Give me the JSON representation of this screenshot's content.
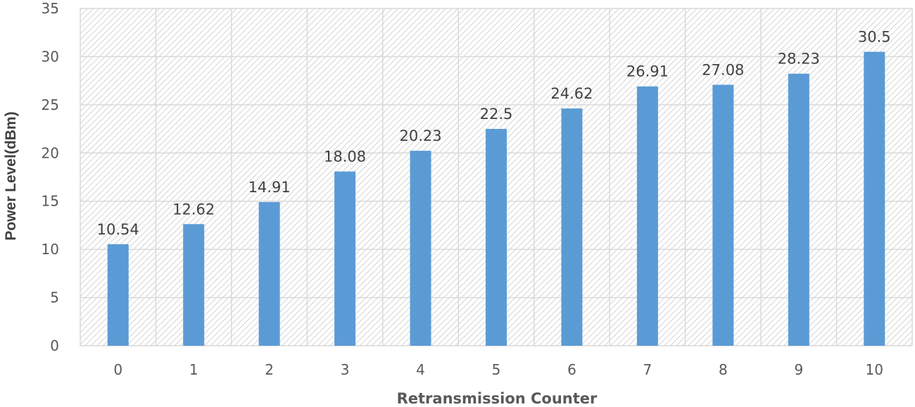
{
  "chart_data": {
    "type": "bar",
    "title": "",
    "xlabel": "Retransmission Counter",
    "ylabel": "Power Level(dBm)",
    "categories": [
      "0",
      "1",
      "2",
      "3",
      "4",
      "5",
      "6",
      "7",
      "8",
      "9",
      "10"
    ],
    "values": [
      10.54,
      12.62,
      14.91,
      18.08,
      20.23,
      22.5,
      24.62,
      26.91,
      27.08,
      28.23,
      30.5
    ],
    "data_labels": [
      "10.54",
      "12.62",
      "14.91",
      "18.08",
      "20.23",
      "22.5",
      "24.62",
      "26.91",
      "27.08",
      "28.23",
      "30.5"
    ],
    "y_ticks": [
      "0",
      "5",
      "10",
      "15",
      "20",
      "25",
      "30",
      "35"
    ],
    "ylim": [
      0,
      35
    ],
    "grid": true,
    "legend": "none",
    "bar_color": "#5b9bd5",
    "background_pattern": "diagonal-hatch"
  }
}
